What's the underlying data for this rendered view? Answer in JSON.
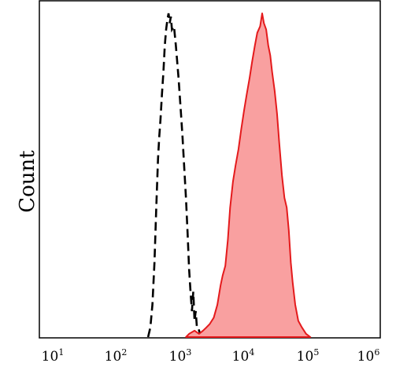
{
  "chart_data": {
    "type": "area",
    "title": "",
    "xlabel": "",
    "ylabel": "Count",
    "x_scale": "log",
    "xlim": [
      10,
      1000000
    ],
    "ylim": [
      0,
      1.0
    ],
    "x_ticks": [
      {
        "base": "10",
        "exp": "1"
      },
      {
        "base": "10",
        "exp": "2"
      },
      {
        "base": "10",
        "exp": "3"
      },
      {
        "base": "10",
        "exp": "4"
      },
      {
        "base": "10",
        "exp": "5"
      },
      {
        "base": "10",
        "exp": "6"
      }
    ],
    "grid": false,
    "legend": "none",
    "series": [
      {
        "style": "dashed-line",
        "color": "#000000",
        "points": [
          [
            250,
            0.0
          ],
          [
            270,
            0.03
          ],
          [
            290,
            0.1
          ],
          [
            310,
            0.23
          ],
          [
            330,
            0.4
          ],
          [
            350,
            0.55
          ],
          [
            365,
            0.62
          ],
          [
            380,
            0.67
          ],
          [
            400,
            0.75
          ],
          [
            420,
            0.82
          ],
          [
            440,
            0.9
          ],
          [
            460,
            0.95
          ],
          [
            480,
            0.98
          ],
          [
            500,
            1.0
          ],
          [
            520,
            0.97
          ],
          [
            540,
            0.99
          ],
          [
            560,
            0.95
          ],
          [
            600,
            0.96
          ],
          [
            640,
            0.9
          ],
          [
            700,
            0.8
          ],
          [
            760,
            0.69
          ],
          [
            800,
            0.62
          ],
          [
            850,
            0.52
          ],
          [
            900,
            0.43
          ],
          [
            950,
            0.32
          ],
          [
            1000,
            0.21
          ],
          [
            1050,
            0.14
          ],
          [
            1100,
            0.08
          ],
          [
            1150,
            0.14
          ],
          [
            1200,
            0.05
          ],
          [
            1250,
            0.08
          ],
          [
            1300,
            0.03
          ],
          [
            1350,
            0.03
          ],
          [
            1450,
            0.01
          ],
          [
            1600,
            0.0
          ]
        ]
      },
      {
        "style": "filled",
        "color": "#e41a1c",
        "fill": "#f9a0a0",
        "points": [
          [
            900,
            0.0
          ],
          [
            1000,
            0.01
          ],
          [
            1200,
            0.02
          ],
          [
            1400,
            0.01
          ],
          [
            1600,
            0.02
          ],
          [
            1800,
            0.03
          ],
          [
            2000,
            0.04
          ],
          [
            2300,
            0.06
          ],
          [
            2600,
            0.1
          ],
          [
            2900,
            0.16
          ],
          [
            3100,
            0.19
          ],
          [
            3400,
            0.22
          ],
          [
            3700,
            0.3
          ],
          [
            4000,
            0.4
          ],
          [
            4400,
            0.48
          ],
          [
            4800,
            0.53
          ],
          [
            5300,
            0.58
          ],
          [
            5800,
            0.64
          ],
          [
            6400,
            0.7
          ],
          [
            7000,
            0.75
          ],
          [
            7700,
            0.8
          ],
          [
            8400,
            0.85
          ],
          [
            9200,
            0.9
          ],
          [
            10000,
            0.94
          ],
          [
            11000,
            0.96
          ],
          [
            11800,
            1.0
          ],
          [
            12500,
            0.97
          ],
          [
            13500,
            0.95
          ],
          [
            14500,
            0.9
          ],
          [
            15500,
            0.87
          ],
          [
            16500,
            0.82
          ],
          [
            18000,
            0.76
          ],
          [
            19500,
            0.69
          ],
          [
            21000,
            0.6
          ],
          [
            23000,
            0.5
          ],
          [
            25000,
            0.43
          ],
          [
            27000,
            0.4
          ],
          [
            29000,
            0.33
          ],
          [
            31000,
            0.23
          ],
          [
            33000,
            0.17
          ],
          [
            36000,
            0.1
          ],
          [
            40000,
            0.05
          ],
          [
            45000,
            0.03
          ],
          [
            52000,
            0.01
          ],
          [
            60000,
            0.0
          ]
        ]
      }
    ]
  }
}
